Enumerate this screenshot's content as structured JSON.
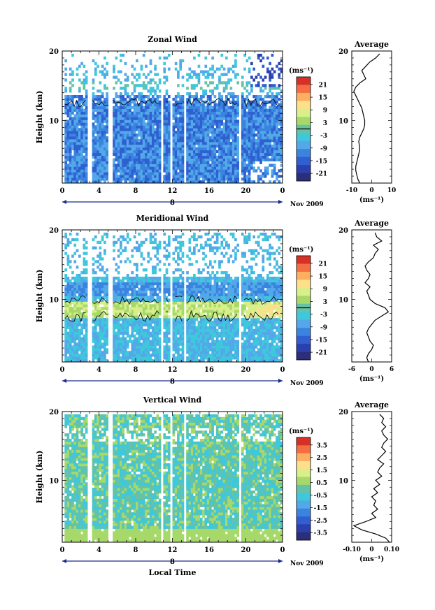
{
  "chart_data": [
    {
      "type": "heatmap",
      "title": "Zonal Wind",
      "ylabel": "Height (km)",
      "ylim": [
        1,
        20
      ],
      "yticks": [
        10,
        20
      ],
      "xlim": [
        0,
        24
      ],
      "xticks": [
        "0",
        "4",
        "8",
        "12",
        "16",
        "20",
        "0"
      ],
      "date_marker": "8",
      "date_label": "Nov 2009",
      "colorbar": {
        "unit": "(ms⁻¹)",
        "ticks": [
          "21",
          "15",
          "9",
          "3",
          "-3",
          "-9",
          "-15",
          "-21"
        ],
        "contour_level": -1
      },
      "description_profile": "cross-section of zonal wind, mostly -5 to -15 ms-1 below 13 km, sparse above",
      "average_profile": {
        "title": "Average",
        "xlabel": "(ms⁻¹)",
        "xlim": [
          -10,
          10
        ],
        "xticks": [
          "-10",
          "0",
          "10"
        ],
        "ylim": [
          1,
          20
        ],
        "yticks": [
          10,
          20
        ],
        "x": [
          -6,
          -7,
          -7.5,
          -8,
          -8,
          -7.5,
          -7,
          -6.5,
          -6,
          -6.2,
          -6.5,
          -6,
          -5,
          -4,
          -3.5,
          -3.5,
          -4,
          -4.5,
          -5,
          -6,
          -7,
          -8,
          -9,
          -8,
          -6,
          -3,
          -4,
          -5,
          -3,
          -1,
          2,
          4
        ],
        "y": [
          1,
          1.6,
          2.2,
          2.8,
          3.4,
          4,
          4.6,
          5.2,
          5.8,
          6.4,
          7,
          7.6,
          8.2,
          8.8,
          9.4,
          10,
          10.6,
          11.2,
          11.8,
          12.4,
          13,
          13.6,
          14.2,
          14.8,
          15.4,
          16,
          16.6,
          17.2,
          17.8,
          18.4,
          19,
          19.6
        ]
      }
    },
    {
      "type": "heatmap",
      "title": "Meridional Wind",
      "ylabel": "Height (km)",
      "ylim": [
        1,
        20
      ],
      "yticks": [
        10,
        20
      ],
      "xlim": [
        0,
        24
      ],
      "xticks": [
        "0",
        "4",
        "8",
        "12",
        "16",
        "20",
        "0"
      ],
      "date_marker": "8",
      "date_label": "Nov 2009",
      "colorbar": {
        "unit": "(ms⁻¹)",
        "ticks": [
          "21",
          "15",
          "9",
          "3",
          "-3",
          "-9",
          "-15",
          "-21"
        ],
        "contour_level": -1
      },
      "average_profile": {
        "title": "Average",
        "xlabel": "(ms⁻¹)",
        "xlim": [
          -6,
          6
        ],
        "xticks": [
          "-6",
          "0",
          "6"
        ],
        "ylim": [
          1,
          20
        ],
        "yticks": [
          10,
          20
        ],
        "x": [
          -1,
          -1.5,
          -1,
          0,
          0.5,
          -0.5,
          -1,
          -1.5,
          -1,
          0,
          1,
          3,
          5,
          4,
          1,
          -0.5,
          -1,
          -1.5,
          -0.5,
          -2,
          -1,
          -0.5,
          -1.5,
          -2,
          -1,
          0.5,
          1,
          2,
          0.5,
          3,
          1.5,
          1
        ],
        "y": [
          1,
          1.6,
          2.2,
          2.8,
          3.4,
          4,
          4.6,
          5.2,
          5.8,
          6.4,
          7,
          7.6,
          8.2,
          8.8,
          9.4,
          10,
          10.6,
          11.2,
          11.8,
          12.4,
          13,
          13.6,
          14.2,
          14.8,
          15.4,
          16,
          16.6,
          17.2,
          17.8,
          18.4,
          19,
          19.6
        ]
      }
    },
    {
      "type": "heatmap",
      "title": "Vertical Wind",
      "ylabel": "Height (km)",
      "xlabel": "Local Time",
      "ylim": [
        1,
        20
      ],
      "yticks": [
        10,
        20
      ],
      "xlim": [
        0,
        24
      ],
      "xticks": [
        "0",
        "4",
        "8",
        "12",
        "16",
        "20",
        "0"
      ],
      "date_marker": "8",
      "date_label": "Nov 2009",
      "colorbar": {
        "unit": "(ms⁻¹)",
        "ticks": [
          "3.5",
          "2.5",
          "1.5",
          "0.5",
          "-0.5",
          "-1.5",
          "-2.5",
          "-3.5"
        ]
      },
      "average_profile": {
        "title": "Average",
        "xlabel": "(ms⁻¹)",
        "xlim": [
          -0.1,
          0.1
        ],
        "xticks": [
          "-0.10",
          "0",
          "0.10"
        ],
        "ylim": [
          1,
          20
        ],
        "yticks": [
          10,
          20
        ],
        "x": [
          0.09,
          0.07,
          0.02,
          -0.05,
          -0.09,
          -0.03,
          0.02,
          0.0,
          0.03,
          0.01,
          0.02,
          0.0,
          0.03,
          0.01,
          0.04,
          0.02,
          0.05,
          0.03,
          0.04,
          0.06,
          0.03,
          0.05,
          0.07,
          0.05,
          0.06,
          0.08,
          0.06,
          0.05,
          0.07,
          0.05,
          0.06,
          0.04
        ],
        "y": [
          1,
          1.6,
          2.2,
          2.8,
          3.4,
          4,
          4.6,
          5.2,
          5.8,
          6.4,
          7,
          7.6,
          8.2,
          8.8,
          9.4,
          10,
          10.6,
          11.2,
          11.8,
          12.4,
          13,
          13.6,
          14.2,
          14.8,
          15.4,
          16,
          16.6,
          17.2,
          17.8,
          18.4,
          19,
          19.6
        ]
      }
    }
  ]
}
